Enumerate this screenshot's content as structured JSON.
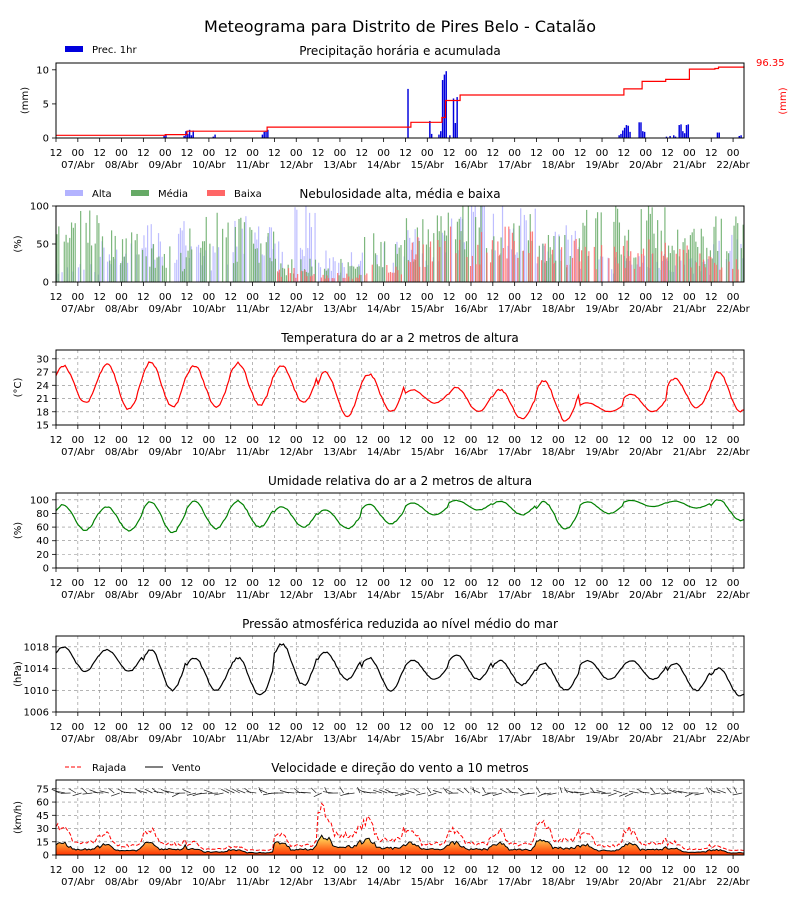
{
  "page": {
    "title": "Meteograma para Distrito de Pires Belo - Catalão"
  },
  "x_axis": {
    "hour_labels": [
      "12",
      "00",
      "12",
      "00",
      "12",
      "00",
      "12",
      "00",
      "12",
      "00",
      "12",
      "00",
      "12",
      "00",
      "12",
      "00",
      "12",
      "00",
      "12",
      "00",
      "12",
      "00",
      "12",
      "00",
      "12",
      "00",
      "12",
      "00",
      "12",
      "00",
      "12",
      "00"
    ],
    "day_labels": [
      "07/Abr",
      "08/Abr",
      "09/Abr",
      "10/Abr",
      "11/Abr",
      "12/Abr",
      "13/Abr",
      "14/Abr",
      "15/Abr",
      "16/Abr",
      "17/Abr",
      "18/Abr",
      "19/Abr",
      "20/Abr",
      "21/Abr",
      "22/Abr"
    ],
    "hours_total": 378
  },
  "colors": {
    "precip_bar": "#0000dd",
    "precip_accum": "#ff0000",
    "cloud_high": "#b3b3ff",
    "cloud_mid": "#66aa66",
    "cloud_low": "#ff6666",
    "temperature": "#ff0000",
    "humidity": "#008000",
    "pressure": "#000000",
    "gust": "#ff0000",
    "wind": "#000000"
  },
  "chart_data": [
    {
      "type": "bar",
      "title": "Precipitação horária e acumulada",
      "ylabel": "(mm)",
      "y2label": "(mm)",
      "ylim": [
        0,
        11
      ],
      "yticks": [
        "0",
        "5",
        "10"
      ],
      "legend": [
        "Prec. 1hr"
      ],
      "accum_total_label": "96.35",
      "series": [
        {
          "name": "Prec. 1hr",
          "hour_values": [
            [
              59,
              0.3
            ],
            [
              60,
              0.5
            ],
            [
              70,
              0.3
            ],
            [
              71,
              1.0
            ],
            [
              72,
              0.6
            ],
            [
              73,
              1.2
            ],
            [
              74,
              0.4
            ],
            [
              75,
              1.1
            ],
            [
              86,
              0.2
            ],
            [
              87,
              0.5
            ],
            [
              113,
              0.5
            ],
            [
              114,
              0.9
            ],
            [
              115,
              1.0
            ],
            [
              116,
              1.2
            ],
            [
              193,
              7.2
            ],
            [
              205,
              2.5
            ],
            [
              206,
              0.6
            ],
            [
              210,
              0.5
            ],
            [
              211,
              1.0
            ],
            [
              212,
              8.5
            ],
            [
              213,
              9.3
            ],
            [
              214,
              9.8
            ],
            [
              216,
              0.4
            ],
            [
              218,
              5.8
            ],
            [
              219,
              2.2
            ],
            [
              220,
              6.0
            ],
            [
              309,
              0.4
            ],
            [
              310,
              0.6
            ],
            [
              311,
              1.1
            ],
            [
              312,
              1.5
            ],
            [
              313,
              1.9
            ],
            [
              314,
              1.8
            ],
            [
              315,
              0.9
            ],
            [
              320,
              2.3
            ],
            [
              321,
              2.3
            ],
            [
              322,
              1.0
            ],
            [
              323,
              0.9
            ],
            [
              335,
              0.2
            ],
            [
              337,
              0.3
            ],
            [
              339,
              0.4
            ],
            [
              340,
              0.2
            ],
            [
              342,
              1.9
            ],
            [
              343,
              2.0
            ],
            [
              344,
              1.0
            ],
            [
              345,
              0.7
            ],
            [
              346,
              1.9
            ],
            [
              347,
              2.0
            ],
            [
              363,
              0.8
            ],
            [
              364,
              0.8
            ],
            [
              375,
              0.3
            ],
            [
              376,
              0.4
            ]
          ]
        },
        {
          "name": "accumulated",
          "hour_values": [
            [
              0,
              0.4
            ],
            [
              60,
              0.5
            ],
            [
              72,
              1.0
            ],
            [
              116,
              1.6
            ],
            [
              195,
              2.3
            ],
            [
              212,
              3.0
            ],
            [
              214,
              5.5
            ],
            [
              222,
              6.3
            ],
            [
              305,
              6.3
            ],
            [
              312,
              7.2
            ],
            [
              322,
              8.3
            ],
            [
              335,
              8.6
            ],
            [
              348,
              10.1
            ],
            [
              362,
              10.2
            ],
            [
              364,
              10.4
            ],
            [
              378,
              10.5
            ]
          ]
        }
      ]
    },
    {
      "type": "bar",
      "title": "Nebulosidade alta, média e baixa",
      "ylabel": "(%)",
      "ylim": [
        0,
        100
      ],
      "yticks": [
        "0",
        "50",
        "100"
      ],
      "legend": [
        "Alta",
        "Média",
        "Baixa"
      ],
      "series": [
        {
          "name": "Alta",
          "day_pattern": [
            20,
            45,
            70,
            40,
            70,
            95,
            35,
            45,
            60,
            95,
            90,
            60,
            30,
            40,
            25,
            55
          ]
        },
        {
          "name": "Média",
          "day_pattern": [
            85,
            55,
            40,
            75,
            70,
            25,
            25,
            55,
            75,
            95,
            80,
            50,
            95,
            80,
            60,
            70
          ]
        },
        {
          "name": "Baixa",
          "day_pattern": [
            0,
            0,
            0,
            0,
            0,
            15,
            10,
            20,
            55,
            60,
            60,
            50,
            40,
            45,
            40,
            25
          ]
        }
      ]
    },
    {
      "type": "line",
      "title": "Temperatura do ar a 2 metros de altura",
      "ylabel": "(°C)",
      "ylim": [
        15,
        32
      ],
      "yticks": [
        "15",
        "18",
        "21",
        "24",
        "27",
        "30"
      ],
      "series": [
        {
          "name": "",
          "daily_min_max": [
            [
              20,
              28.5
            ],
            [
              18.5,
              29
            ],
            [
              19,
              29.2
            ],
            [
              19,
              28.5
            ],
            [
              19.5,
              29
            ],
            [
              20,
              28.5
            ],
            [
              17,
              27
            ],
            [
              18,
              26.5
            ],
            [
              20,
              23
            ],
            [
              18,
              23.5
            ],
            [
              16.5,
              23
            ],
            [
              16,
              25
            ],
            [
              18,
              20
            ],
            [
              18,
              22
            ],
            [
              19,
              25.5
            ],
            [
              18,
              27
            ]
          ]
        }
      ]
    },
    {
      "type": "line",
      "title": "Umidade relativa do ar a 2 metros de altura",
      "ylabel": "(%)",
      "ylim": [
        0,
        110
      ],
      "yticks": [
        "0",
        "20",
        "40",
        "60",
        "80",
        "100"
      ],
      "series": [
        {
          "name": "",
          "daily_min_max": [
            [
              55,
              93
            ],
            [
              55,
              90
            ],
            [
              52,
              97
            ],
            [
              58,
              98
            ],
            [
              60,
              98
            ],
            [
              60,
              90
            ],
            [
              58,
              85
            ],
            [
              65,
              93
            ],
            [
              78,
              95
            ],
            [
              85,
              99
            ],
            [
              78,
              98
            ],
            [
              57,
              97
            ],
            [
              80,
              97
            ],
            [
              90,
              99
            ],
            [
              88,
              98
            ],
            [
              70,
              100
            ]
          ]
        }
      ]
    },
    {
      "type": "line",
      "title": "Pressão atmosférica reduzida ao nível médio do mar",
      "ylabel": "(hPa)",
      "ylim": [
        1006,
        1020
      ],
      "yticks": [
        "1006",
        "1010",
        "1014",
        "1018"
      ],
      "series": [
        {
          "name": "",
          "daily_min_max": [
            [
              1013.5,
              1018
            ],
            [
              1013.5,
              1017.5
            ],
            [
              1010,
              1017.5
            ],
            [
              1010,
              1016
            ],
            [
              1009,
              1016
            ],
            [
              1011,
              1018.5
            ],
            [
              1012,
              1017
            ],
            [
              1010,
              1016
            ],
            [
              1012,
              1015.5
            ],
            [
              1012,
              1016.5
            ],
            [
              1011,
              1015.5
            ],
            [
              1010,
              1015
            ],
            [
              1012,
              1015.5
            ],
            [
              1012,
              1015.5
            ],
            [
              1010,
              1015
            ],
            [
              1009,
              1014
            ]
          ]
        }
      ]
    },
    {
      "type": "line",
      "title": "Velocidade e direção do vento a 10 metros",
      "ylabel": "(km/h)",
      "ylim": [
        0,
        85
      ],
      "yticks": [
        "0",
        "15",
        "30",
        "45",
        "60",
        "75"
      ],
      "legend": [
        "Rajada",
        "Vento"
      ],
      "series": [
        {
          "name": "Rajada",
          "daily_max": [
            35,
            25,
            30,
            15,
            10,
            25,
            55,
            40,
            30,
            30,
            28,
            40,
            25,
            30,
            15,
            10
          ]
        },
        {
          "name": "Vento",
          "daily_max": [
            15,
            12,
            15,
            8,
            6,
            15,
            22,
            18,
            15,
            15,
            14,
            18,
            12,
            14,
            8,
            6
          ]
        }
      ]
    }
  ]
}
